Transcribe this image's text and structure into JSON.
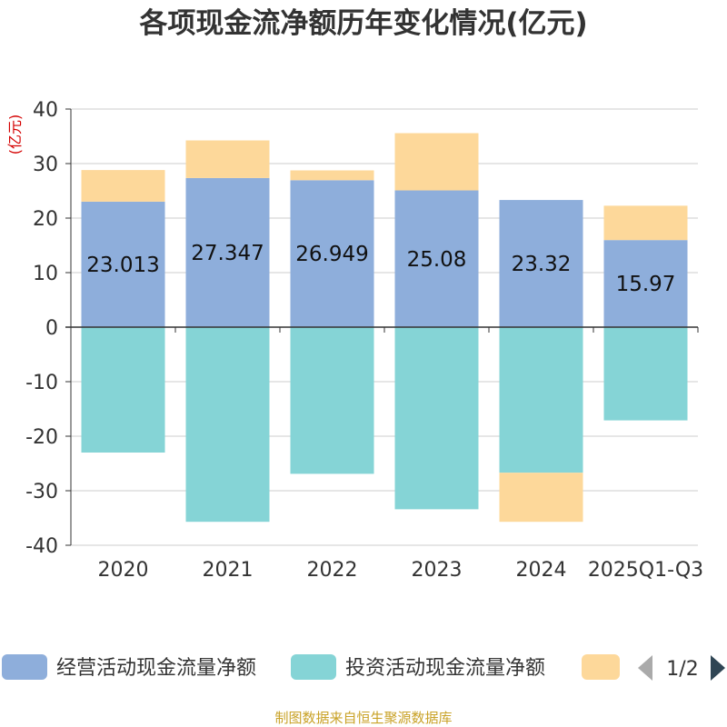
{
  "chart_data": {
    "type": "bar",
    "stacked": true,
    "title": "各项现金流净额历年变化情况(亿元)",
    "ylabel": "(亿元)",
    "categories": [
      "2020",
      "2021",
      "2022",
      "2023",
      "2024",
      "2025Q1-Q3"
    ],
    "yticks": [
      "40",
      "30",
      "20",
      "10",
      "0",
      "-10",
      "-20",
      "-30",
      "-40"
    ],
    "ylim": [
      -40,
      40
    ],
    "ytick_step": 10,
    "series": [
      {
        "name": "经营活动现金流量净额",
        "color": "#8eaedb",
        "values": [
          23.013,
          27.347,
          26.949,
          25.08,
          23.32,
          15.97
        ]
      },
      {
        "name": "投资活动现金流量净额",
        "color": "#85d4d6",
        "values": [
          -23.0,
          -35.7,
          -26.9,
          -33.4,
          -26.7,
          -17.1
        ]
      },
      {
        "name": "",
        "color": "#fdd89a",
        "values": [
          5.8,
          6.9,
          1.8,
          10.5,
          -9.0,
          6.3
        ]
      }
    ],
    "data_labels": [
      "23.013",
      "27.347",
      "26.949",
      "25.08",
      "23.32",
      "15.97"
    ],
    "legend": {
      "position": "bottom",
      "page_indicator": "1/2",
      "visible_entries": [
        "经营活动现金流量净额",
        "投资活动现金流量净额",
        ""
      ]
    },
    "grid": true
  },
  "source": "制图数据来自恒生聚源数据库",
  "icons": {
    "prev": "triangle-left-icon",
    "next": "triangle-right-icon"
  },
  "colors": {
    "grid": "#cccccc",
    "axis": "#333333",
    "pager_active": "#2f4554",
    "pager_inactive": "#aaaaaa"
  }
}
